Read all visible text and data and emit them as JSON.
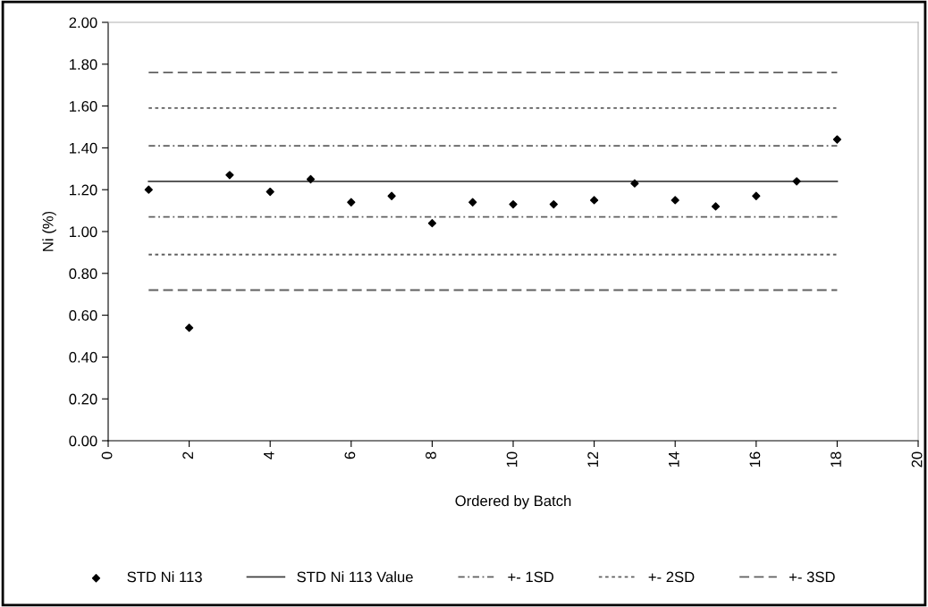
{
  "chart_data": {
    "type": "scatter",
    "xlabel": "Ordered by Batch",
    "ylabel": "Ni (%)",
    "xlim": [
      0,
      20
    ],
    "xticks": [
      0,
      2,
      4,
      6,
      8,
      10,
      12,
      14,
      16,
      18,
      20
    ],
    "ylim": [
      0,
      2
    ],
    "yticks": [
      {
        "value": 0,
        "label": "0.00"
      },
      {
        "value": 0.2,
        "label": "0.20"
      },
      {
        "value": 0.4,
        "label": "0.40"
      },
      {
        "value": 0.6,
        "label": "0.60"
      },
      {
        "value": 0.8,
        "label": "0.80"
      },
      {
        "value": 1.0,
        "label": "1.00"
      },
      {
        "value": 1.2,
        "label": "1.20"
      },
      {
        "value": 1.4,
        "label": "1.40"
      },
      {
        "value": 1.6,
        "label": "1.60"
      },
      {
        "value": 1.8,
        "label": "1.80"
      },
      {
        "value": 2.0,
        "label": "2.00"
      }
    ],
    "grid": false,
    "legend": "bottom",
    "series": [
      {
        "name": "STD Ni 113",
        "marker": "diamond",
        "color": "#000000",
        "x": [
          1,
          2,
          3,
          4,
          5,
          6,
          7,
          8,
          9,
          10,
          11,
          12,
          13,
          14,
          15,
          16,
          17,
          18
        ],
        "values": [
          1.2,
          0.54,
          1.27,
          1.19,
          1.25,
          1.14,
          1.17,
          1.04,
          1.14,
          1.13,
          1.13,
          1.15,
          1.23,
          1.15,
          1.12,
          1.17,
          1.24,
          1.44
        ]
      },
      {
        "name": "STD Ni 113 Value",
        "type": "line",
        "line_style": "solid",
        "color": "#404040",
        "x": [
          1,
          18
        ],
        "values": [
          1.24,
          1.24
        ]
      },
      {
        "name": "+- 1SD",
        "type": "line",
        "line_style": "dashdot",
        "color": "#606060",
        "x": [
          1,
          18
        ],
        "values": [
          1.41,
          1.41
        ]
      },
      {
        "type": "line",
        "line_style": "dashdot",
        "color": "#606060",
        "x": [
          1,
          18
        ],
        "values": [
          1.07,
          1.07
        ]
      },
      {
        "name": "+- 2SD",
        "type": "line",
        "line_style": "dotted",
        "color": "#606060",
        "x": [
          1,
          18
        ],
        "values": [
          1.59,
          1.59
        ]
      },
      {
        "type": "line",
        "line_style": "dotted",
        "color": "#606060",
        "x": [
          1,
          18
        ],
        "values": [
          0.89,
          0.89
        ]
      },
      {
        "name": "+- 3SD",
        "type": "line",
        "line_style": "dashed",
        "color": "#606060",
        "x": [
          1,
          18
        ],
        "values": [
          1.76,
          1.76
        ]
      },
      {
        "type": "line",
        "line_style": "dashed",
        "color": "#606060",
        "x": [
          1,
          18
        ],
        "values": [
          0.72,
          0.72
        ]
      }
    ]
  }
}
